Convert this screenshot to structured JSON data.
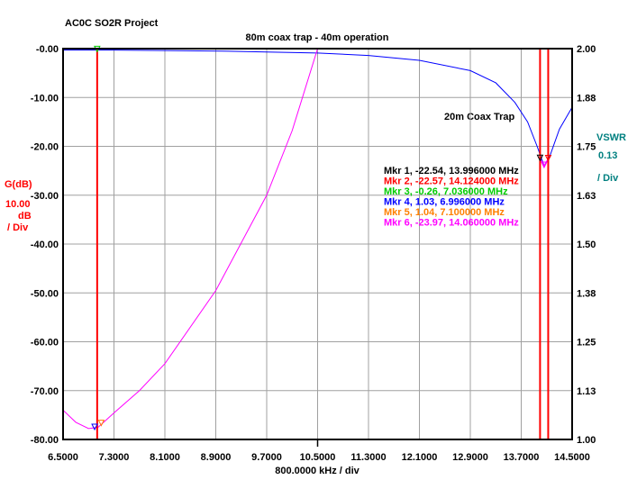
{
  "chart_data": {
    "type": "line",
    "project": "AC0C SO2R Project",
    "title": "80m coax trap - 40m operation",
    "annotation": "20m Coax Trap",
    "xlabel": "800.0000 kHz / div",
    "xlim": [
      6.5,
      14.5
    ],
    "xticks": [
      "6.5000",
      "7.3000",
      "8.1000",
      "8.9000",
      "9.7000",
      "10.5000",
      "11.3000",
      "12.1000",
      "12.9000",
      "13.7000",
      "14.5000"
    ],
    "left_axis": {
      "label": "G(dB)",
      "scale": "10.00",
      "unit": "dB",
      "per_div": "/ Div",
      "ylim": [
        -80,
        0
      ],
      "ticks": [
        "-0.00",
        "-10.00",
        "-20.00",
        "-30.00",
        "-40.00",
        "-50.00",
        "-60.00",
        "-70.00",
        "-80.00"
      ],
      "color": "#ff0000"
    },
    "right_axis": {
      "label": "VSWR",
      "scale": "0.13",
      "per_div": "/ Div",
      "ylim": [
        1.0,
        2.0
      ],
      "ticks": [
        "2.00",
        "1.88",
        "1.75",
        "1.63",
        "1.50",
        "1.38",
        "1.25",
        "1.13",
        "1.00"
      ],
      "color": "#008080"
    },
    "grid": true,
    "series": [
      {
        "axis": "left",
        "color": "#0000ff",
        "x": [
          6.5,
          7.3,
          8.1,
          9.0,
          9.7,
          10.5,
          11.3,
          12.1,
          12.9,
          13.3,
          13.6,
          13.8,
          13.95,
          14.06,
          14.15,
          14.3,
          14.5
        ],
        "y": [
          -0.3,
          -0.3,
          -0.4,
          -0.5,
          -0.7,
          -0.9,
          -1.4,
          -2.4,
          -4.5,
          -7,
          -11,
          -15,
          -20,
          -24,
          -22,
          -16.5,
          -12
        ]
      },
      {
        "axis": "right",
        "color": "#ff00ff",
        "x": [
          6.5,
          6.7,
          6.9,
          7.05,
          7.3,
          7.7,
          8.1,
          8.9,
          9.7,
          10.1,
          10.5
        ],
        "y": [
          1.075,
          1.044,
          1.028,
          1.031,
          1.068,
          1.125,
          1.194,
          1.381,
          1.625,
          1.79,
          2.0
        ]
      },
      {
        "axis": "left",
        "color": "#ff00ff",
        "x": [
          13.99,
          14.06,
          14.12
        ],
        "y": [
          -22.3,
          -23.97,
          -22.6
        ]
      }
    ],
    "vertical_markers": [
      7.036,
      13.996,
      14.124
    ],
    "marker_line_color": "#ff0000",
    "markers": [
      {
        "text": "Mkr 1, -22.54, 13.996000 MHz",
        "x": 13.996,
        "y": -22.54,
        "axis": "left",
        "color": "#000000"
      },
      {
        "text": "Mkr 2, -22.57, 14.124000 MHz",
        "x": 14.124,
        "y": -22.57,
        "axis": "left",
        "color": "#ff0000"
      },
      {
        "text": "Mkr 3, -0.26, 7.036000 MHz",
        "x": 7.036,
        "y": -0.26,
        "axis": "left",
        "color": "#00cc00"
      },
      {
        "text": "Mkr 4, 1.03, 6.996000 MHz",
        "x": 6.996,
        "y": 1.03,
        "axis": "right",
        "color": "#0000ff"
      },
      {
        "text": "Mkr 5, 1.04, 7.100000 MHz",
        "x": 7.1,
        "y": 1.04,
        "axis": "right",
        "color": "#ff8000"
      },
      {
        "text": "Mkr 6, -23.97, 14.060000 MHz",
        "x": 14.06,
        "y": -23.97,
        "axis": "left",
        "color": "#ff00ff"
      }
    ]
  }
}
